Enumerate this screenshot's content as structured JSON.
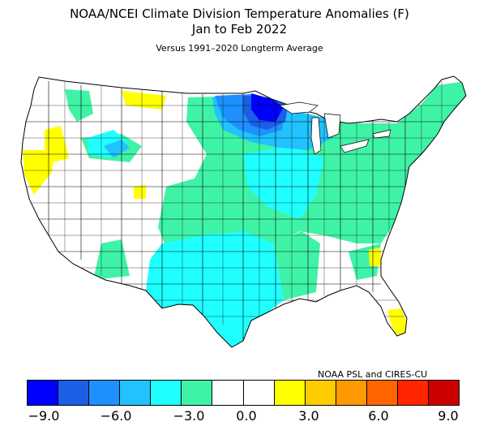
{
  "title": {
    "line1": "NOAA/NCEI Climate Division Temperature Anomalies (F)",
    "line2": "Jan to Feb 2022",
    "line3": "Versus 1991–2020 Longterm Average"
  },
  "credit": "NOAA PSL and CIRES-CU",
  "colors": {
    "bins": [
      "#0000ff",
      "#1a5fe6",
      "#1e90ff",
      "#21c2ff",
      "#20ffff",
      "#3ff3a6",
      "#ffffff",
      "#ffffff",
      "#ffff00",
      "#ffcc00",
      "#ff9900",
      "#ff6600",
      "#ff2600",
      "#cc0000"
    ],
    "land_outline": "#000000",
    "neutral": "#ffffff"
  },
  "legend": {
    "tick_labels": [
      "−9.0",
      "−6.0",
      "−3.0",
      "0.0",
      "3.0",
      "6.0",
      "9.0"
    ],
    "tick_values": [
      -9,
      -6,
      -3,
      0,
      3,
      6,
      9
    ],
    "bin_edges": [
      -10.5,
      -9,
      -7.5,
      -6,
      -4.5,
      -3,
      -1.5,
      0,
      1.5,
      3,
      4.5,
      6,
      7.5,
      9,
      10.5
    ]
  }
}
